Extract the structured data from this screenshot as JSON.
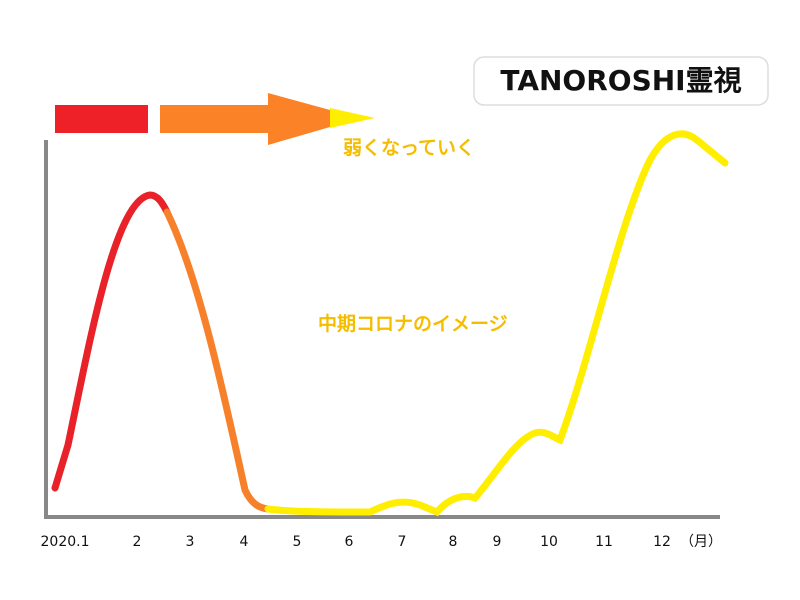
{
  "badge": "TANOROSHI霊視",
  "arrow_label": "弱くなっていく",
  "curve_label": "中期コロナのイメージ",
  "x_axis": {
    "labels": [
      "2020.1",
      "2",
      "3",
      "4",
      "5",
      "6",
      "7",
      "8",
      "9",
      "10",
      "11",
      "12"
    ],
    "unit": "（月）"
  }
}
